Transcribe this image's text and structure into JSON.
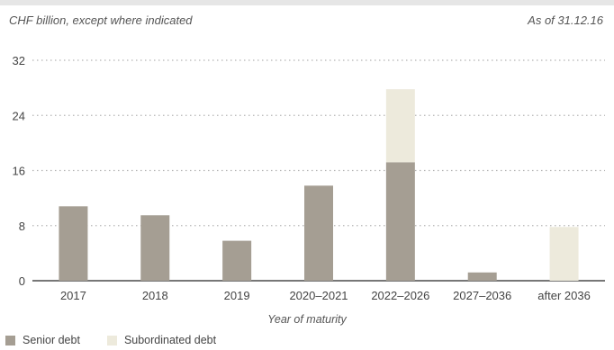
{
  "header": {
    "units_note": "CHF billion, except where indicated",
    "as_of": "As of 31.12.16"
  },
  "colors": {
    "senior": "#a59e93",
    "subordinated": "#edeadc",
    "grid": "#b5b5b5",
    "axis": "#777777"
  },
  "chart_data": {
    "type": "bar",
    "stacked": true,
    "categories": [
      "2017",
      "2018",
      "2019",
      "2020–2021",
      "2022–2026",
      "2027–2036",
      "after 2036"
    ],
    "series": [
      {
        "name": "Senior debt",
        "values": [
          10.8,
          9.5,
          5.8,
          13.8,
          17.2,
          1.2,
          0
        ]
      },
      {
        "name": "Subordinated debt",
        "values": [
          0,
          0,
          0,
          0,
          10.6,
          0,
          7.8
        ]
      }
    ],
    "xlabel": "Year of maturity",
    "ylabel": "",
    "yticks": [
      0,
      8,
      16,
      24,
      32
    ],
    "ylim": [
      0,
      32
    ],
    "grid": true,
    "legend_position": "bottom-left"
  }
}
